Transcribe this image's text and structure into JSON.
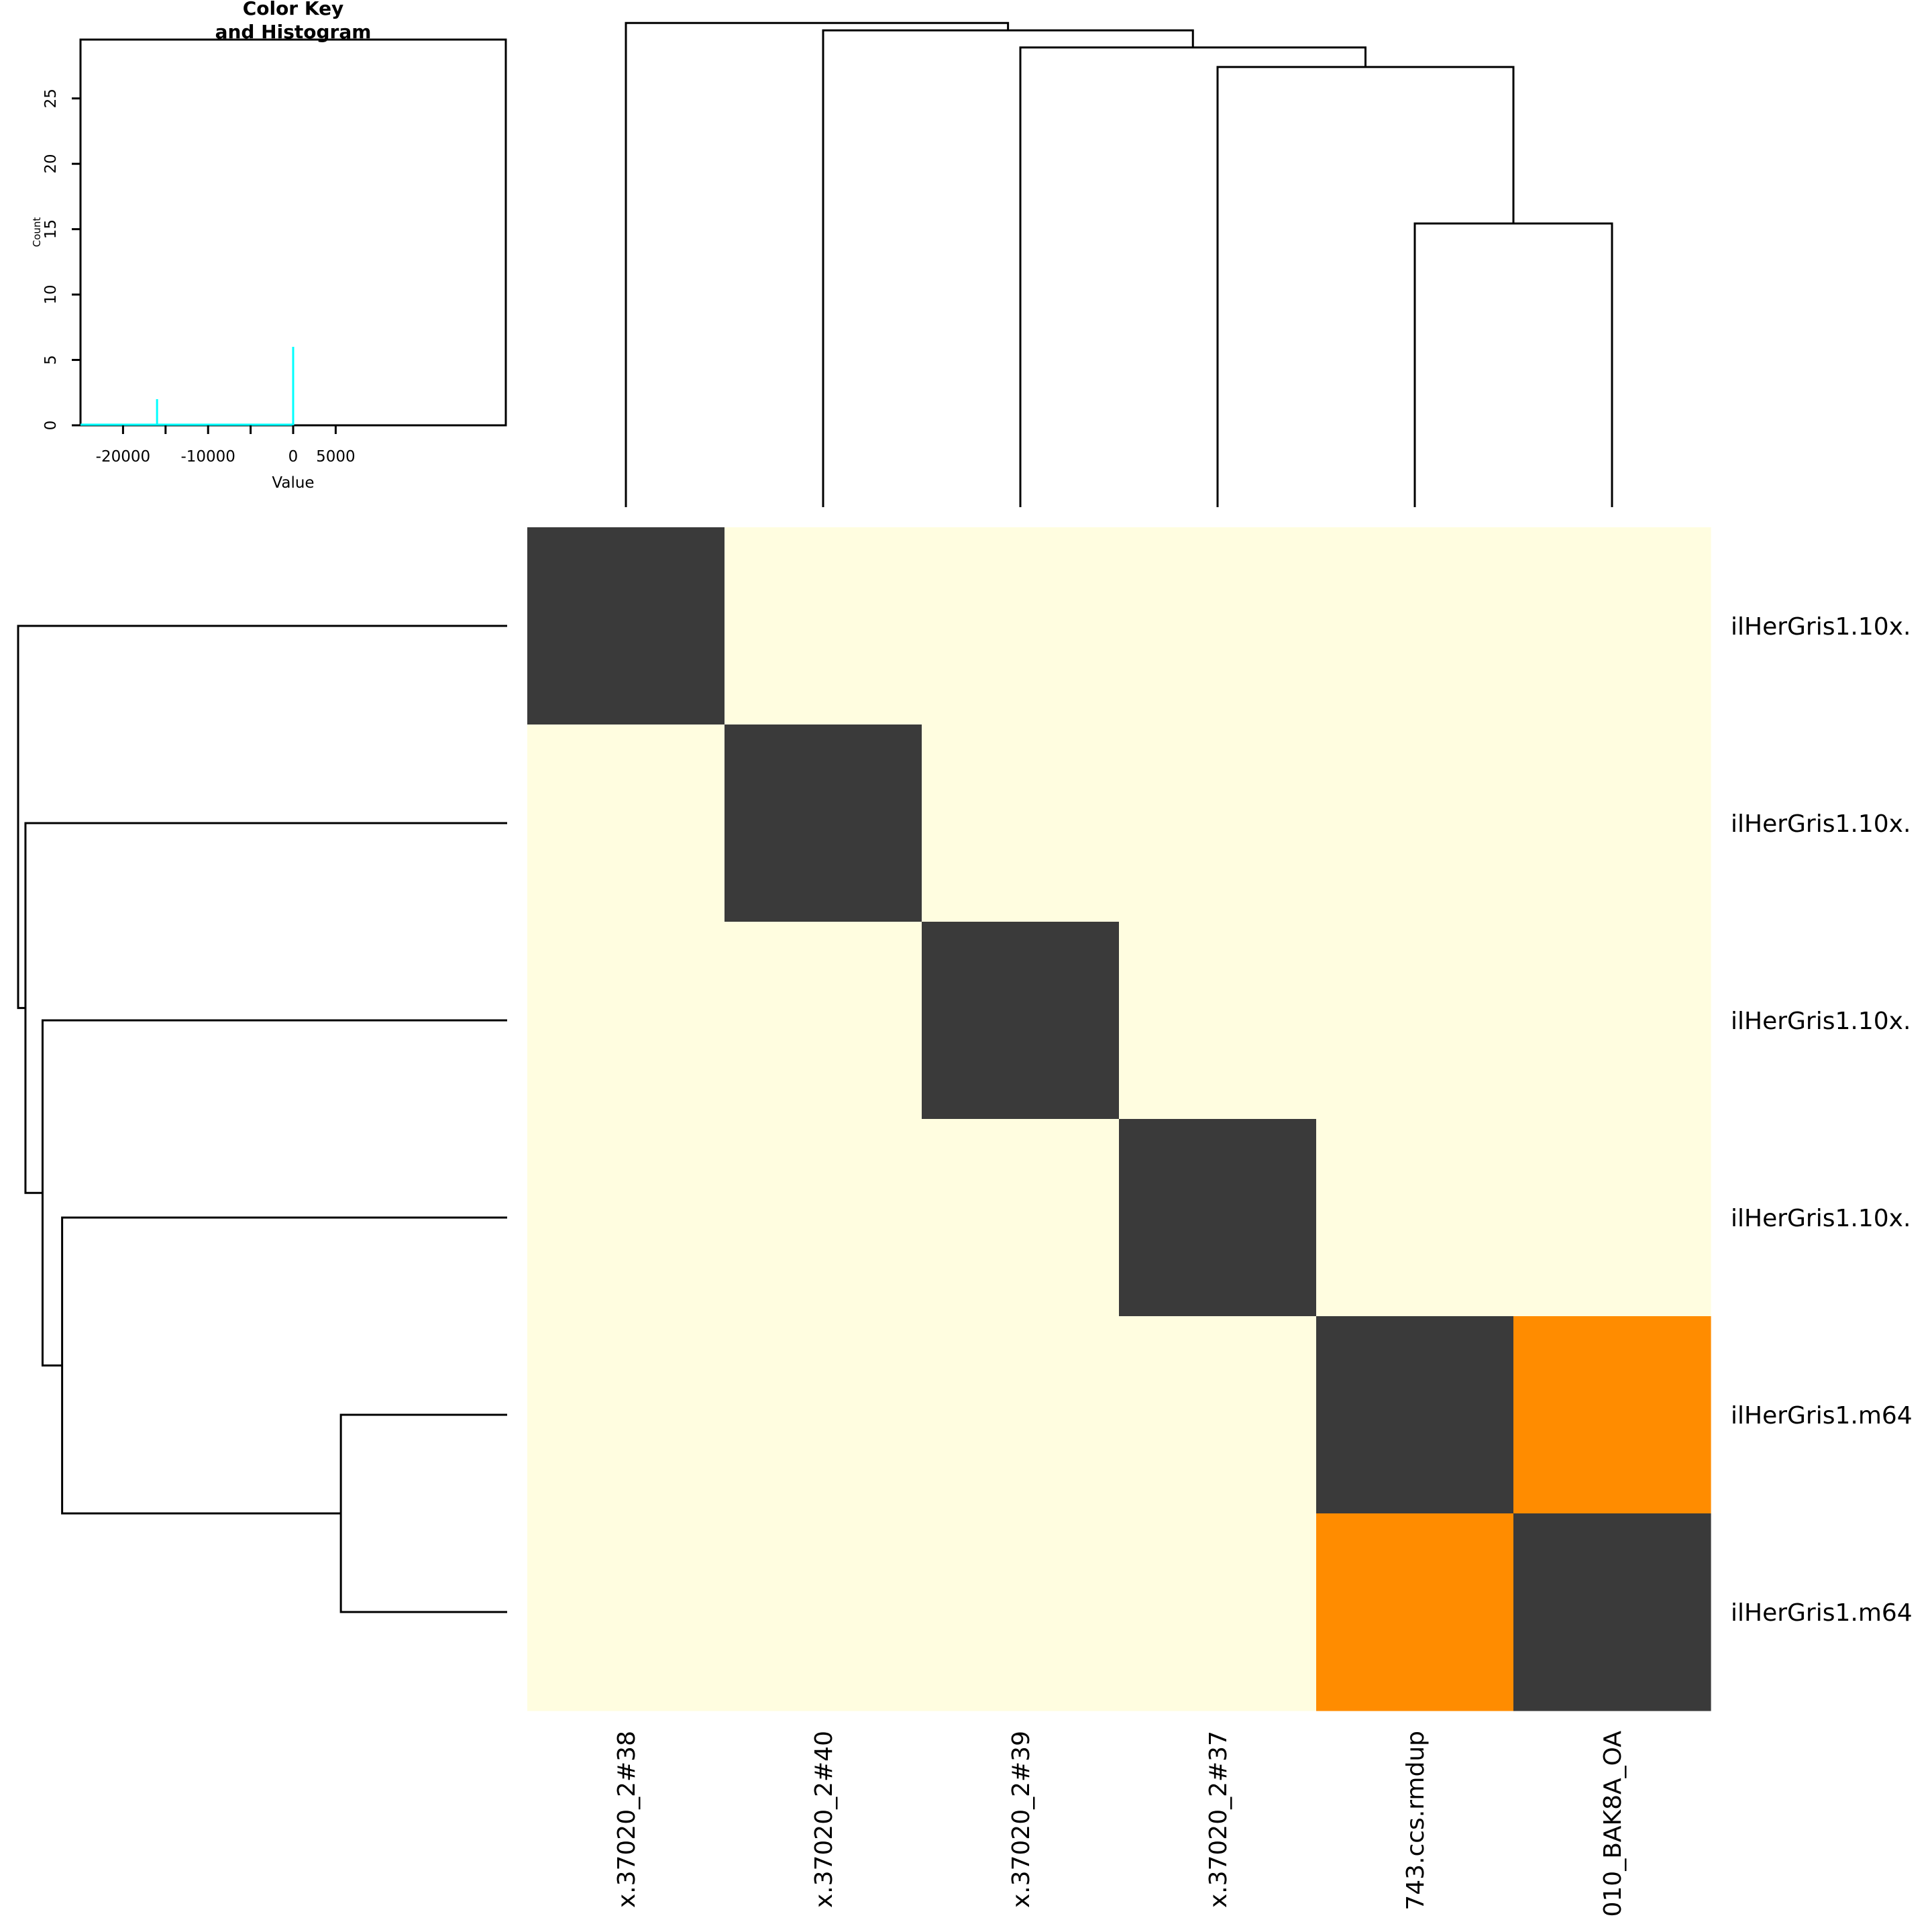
{
  "chart_data": [
    {
      "type": "heatmap",
      "row_labels": [
        "ilHerGris1.10x.",
        "ilHerGris1.10x.",
        "ilHerGris1.10x.",
        "ilHerGris1.10x.",
        "ilHerGris1.m64",
        "ilHerGris1.m64"
      ],
      "column_labels": [
        "x.37020_2#38",
        "x.37020_2#40",
        "x.37020_2#39",
        "x.37020_2#37",
        "743.ccs.rmdup",
        "010_BAK8A_OA"
      ],
      "matrix": [
        [
          0,
          -26000,
          -26000,
          -26000,
          -26000,
          -26000
        ],
        [
          -26000,
          0,
          -26000,
          -26000,
          -26000,
          -26000
        ],
        [
          -26000,
          -26000,
          0,
          -26000,
          -26000,
          -26000
        ],
        [
          -26000,
          -26000,
          -26000,
          0,
          -26000,
          -26000
        ],
        [
          -26000,
          -26000,
          -26000,
          -26000,
          0,
          -16000
        ],
        [
          -26000,
          -26000,
          -26000,
          -26000,
          -16000,
          0
        ]
      ],
      "color_scale": [
        {
          "max": -20000,
          "color": "#fffde0"
        },
        {
          "max": -8000,
          "color": "#ff8c00"
        },
        {
          "max": 1000,
          "color": "#3a3a3a"
        }
      ],
      "column_dendrogram": {
        "merges": [
          {
            "left": 4,
            "right": 5,
            "height": 0.58
          },
          {
            "left": 3,
            "right": 6,
            "height": 0.9
          },
          {
            "left": 2,
            "right": 7,
            "height": 0.94
          },
          {
            "left": 1,
            "right": 8,
            "height": 0.975
          },
          {
            "left": 0,
            "right": 9,
            "height": 0.99
          }
        ]
      },
      "row_dendrogram": {
        "merges": [
          {
            "left": 4,
            "right": 5,
            "height": 0.34
          },
          {
            "left": 3,
            "right": 6,
            "height": 0.91
          },
          {
            "left": 2,
            "right": 7,
            "height": 0.95
          },
          {
            "left": 1,
            "right": 8,
            "height": 0.985
          },
          {
            "left": 0,
            "right": 9,
            "height": 1.0
          }
        ]
      }
    },
    {
      "type": "bar",
      "role": "color-key-histogram",
      "title": "Color Key",
      "subtitle": "and Histogram",
      "xlabel": "Value",
      "ylabel": "Count",
      "xlim": [
        -25000,
        25000
      ],
      "ylim": [
        0,
        29.5
      ],
      "x_ticks": [
        -20000,
        -15000,
        -10000,
        -5000,
        0,
        5000
      ],
      "x_tick_labels": [
        "-20000",
        "",
        "-10000",
        "",
        "0",
        "5000"
      ],
      "y_ticks": [
        0,
        5,
        10,
        15,
        20,
        25
      ],
      "y_tick_labels": [
        "0",
        "5",
        "10",
        "15",
        "20",
        "25"
      ],
      "bars": [
        {
          "x": -16000,
          "count": 2
        },
        {
          "x": 0,
          "count": 6
        }
      ],
      "baseline_range": [
        -25000,
        0
      ],
      "bar_color": "#00ffff"
    }
  ]
}
